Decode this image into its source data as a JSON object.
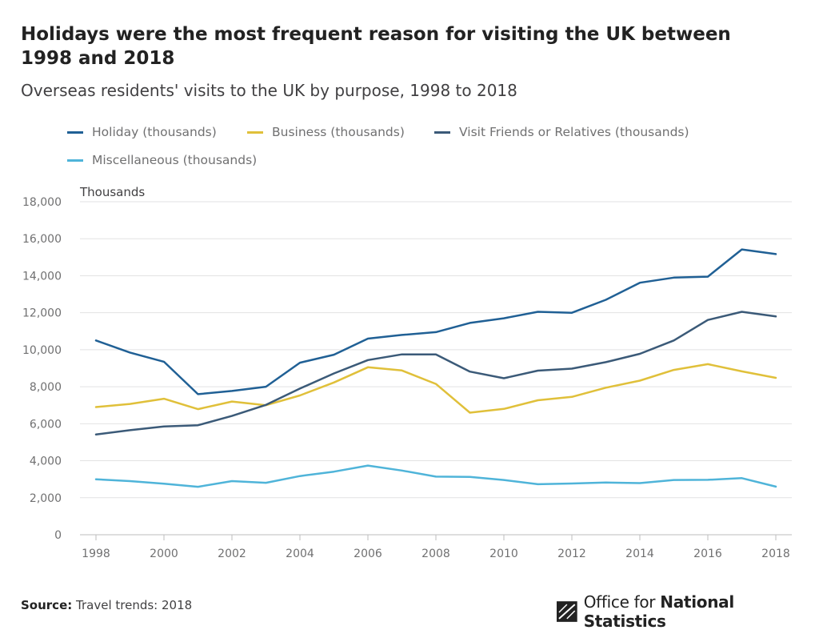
{
  "title": "Holidays were the most frequent reason for visiting the UK between 1998 and 2018",
  "subtitle": "Overseas residents' visits to the UK by purpose, 1998 to 2018",
  "source_label": "Source:",
  "source_text": "Travel trends: 2018",
  "logo": {
    "prefix": "Office for ",
    "strong": "National Statistics"
  },
  "chart_data": {
    "type": "line",
    "ylabel": "Thousands",
    "ylim": [
      0,
      18000
    ],
    "yticks": [
      0,
      2000,
      4000,
      6000,
      8000,
      10000,
      12000,
      14000,
      16000,
      18000
    ],
    "ytick_labels": [
      "0",
      "2,000",
      "4,000",
      "6,000",
      "8,000",
      "10,000",
      "12,000",
      "14,000",
      "16,000",
      "18,000"
    ],
    "xticks": [
      1998,
      2000,
      2002,
      2004,
      2006,
      2008,
      2010,
      2012,
      2014,
      2016,
      2018
    ],
    "xtick_labels": [
      "1998",
      "2000",
      "2002",
      "2004",
      "2006",
      "2008",
      "2010",
      "2012",
      "2014",
      "2016",
      "2018"
    ],
    "grid": true,
    "legend_position": "top-left",
    "x": [
      1998,
      1999,
      2000,
      2001,
      2002,
      2003,
      2004,
      2005,
      2006,
      2007,
      2008,
      2009,
      2010,
      2011,
      2012,
      2013,
      2014,
      2015,
      2016,
      2017,
      2018
    ],
    "series": [
      {
        "name": "Holiday (thousands)",
        "color": "#206095",
        "values": [
          10500,
          9850,
          9350,
          7600,
          7770,
          8000,
          9300,
          9730,
          10600,
          10800,
          10950,
          11450,
          11700,
          12050,
          12000,
          12700,
          13620,
          13900,
          13950,
          15420,
          15170
        ]
      },
      {
        "name": "Business (thousands)",
        "color": "#e0c03a",
        "values": [
          6900,
          7070,
          7350,
          6790,
          7200,
          7000,
          7530,
          8230,
          9050,
          8880,
          8150,
          6600,
          6800,
          7270,
          7450,
          7950,
          8330,
          8910,
          9220,
          8830,
          8480
        ]
      },
      {
        "name": "Visit Friends or Relatives (thousands)",
        "color": "#3b5a78",
        "values": [
          5420,
          5650,
          5850,
          5920,
          6420,
          7020,
          7900,
          8720,
          9440,
          9750,
          9750,
          8820,
          8460,
          8870,
          8980,
          9330,
          9780,
          10500,
          11610,
          12050,
          11800
        ]
      },
      {
        "name": "Miscellaneous (thousands)",
        "color": "#4fb4d9",
        "values": [
          3000,
          2900,
          2760,
          2590,
          2900,
          2810,
          3170,
          3410,
          3740,
          3470,
          3140,
          3130,
          2960,
          2730,
          2770,
          2820,
          2790,
          2960,
          2970,
          3060,
          2600
        ]
      }
    ]
  }
}
